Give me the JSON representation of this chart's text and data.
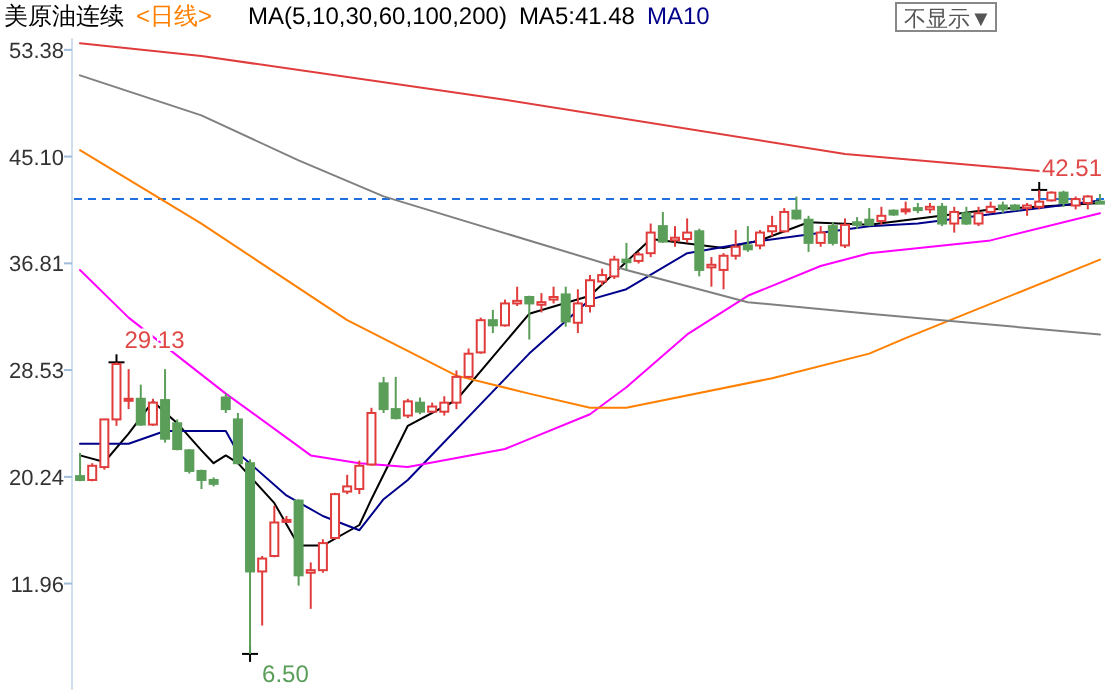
{
  "chart_data": {
    "type": "candlestick",
    "title": "美原油连续",
    "subtitle": "<日线>",
    "categories": [
      null,
      null,
      null,
      null,
      null,
      null,
      null,
      null,
      null,
      null,
      null,
      null,
      null,
      null,
      null,
      null,
      null,
      null,
      null,
      null,
      null,
      null,
      null,
      null,
      null,
      null,
      null,
      null,
      null,
      null,
      null,
      null,
      null,
      null,
      null,
      null,
      null,
      null,
      null,
      null,
      null,
      null,
      null,
      null,
      null,
      null,
      null,
      null,
      null,
      null,
      null,
      null,
      null,
      null,
      null,
      null,
      null,
      null,
      null,
      null,
      null,
      null,
      null,
      null,
      null,
      null,
      null,
      null,
      null,
      null,
      null,
      null,
      null,
      null,
      null,
      null,
      null,
      null,
      null,
      null,
      null,
      null,
      null,
      null,
      null
    ],
    "ohlc": [
      [
        20.3,
        22.1,
        19.9,
        20.0
      ],
      [
        20.0,
        21.3,
        19.9,
        21.1
      ],
      [
        21.0,
        24.7,
        20.8,
        24.7
      ],
      [
        24.7,
        29.13,
        24.2,
        29.0
      ],
      [
        26.2,
        28.6,
        25.5,
        26.3
      ],
      [
        26.3,
        27.4,
        24.2,
        24.3
      ],
      [
        24.3,
        26.3,
        24.2,
        26.0
      ],
      [
        26.2,
        28.6,
        22.9,
        23.2
      ],
      [
        24.4,
        24.7,
        22.3,
        22.4
      ],
      [
        22.3,
        22.4,
        20.5,
        20.7
      ],
      [
        20.7,
        20.8,
        19.3,
        20.0
      ],
      [
        20.0,
        20.2,
        19.5,
        19.7
      ],
      [
        26.4,
        26.7,
        25.2,
        25.5
      ],
      [
        24.7,
        25.2,
        21.2,
        21.3
      ],
      [
        21.3,
        21.6,
        6.5,
        12.9
      ],
      [
        12.9,
        14.1,
        8.7,
        13.9
      ],
      [
        14.1,
        18.0,
        14.0,
        16.7
      ],
      [
        16.8,
        17.2,
        16.7,
        16.9
      ],
      [
        18.4,
        18.5,
        11.8,
        12.6
      ],
      [
        12.8,
        13.6,
        10.0,
        13.0
      ],
      [
        13.0,
        15.4,
        12.8,
        15.1
      ],
      [
        15.5,
        19.0,
        15.4,
        18.9
      ],
      [
        19.1,
        20.4,
        18.9,
        19.5
      ],
      [
        19.3,
        21.5,
        18.9,
        21.1
      ],
      [
        21.2,
        25.6,
        21.1,
        25.2
      ],
      [
        27.5,
        28.0,
        25.2,
        25.5
      ],
      [
        25.5,
        28.0,
        24.7,
        24.8
      ],
      [
        25.0,
        26.3,
        24.8,
        26.1
      ],
      [
        26.0,
        26.4,
        25.1,
        25.3
      ],
      [
        25.3,
        26.0,
        25.2,
        25.7
      ],
      [
        25.3,
        26.5,
        25.0,
        26.0
      ],
      [
        26.0,
        28.5,
        25.5,
        28.0
      ],
      [
        28.0,
        30.2,
        27.9,
        29.8
      ],
      [
        29.9,
        32.6,
        29.8,
        32.4
      ],
      [
        32.4,
        33.2,
        31.4,
        32.0
      ],
      [
        32.0,
        34.0,
        31.9,
        33.7
      ],
      [
        33.7,
        35.0,
        33.5,
        33.9
      ],
      [
        34.2,
        34.3,
        30.9,
        33.7
      ],
      [
        33.6,
        34.5,
        33.0,
        33.8
      ],
      [
        34.0,
        35.0,
        33.7,
        34.2
      ],
      [
        34.4,
        35.0,
        31.9,
        32.3
      ],
      [
        32.2,
        34.8,
        31.4,
        33.7
      ],
      [
        33.5,
        35.9,
        33.0,
        35.5
      ],
      [
        35.4,
        36.4,
        35.1,
        35.9
      ],
      [
        35.8,
        37.4,
        35.6,
        37.1
      ],
      [
        37.1,
        38.4,
        36.3,
        36.9
      ],
      [
        37.0,
        37.7,
        36.8,
        37.5
      ],
      [
        37.6,
        39.9,
        37.3,
        39.2
      ],
      [
        39.7,
        40.8,
        38.4,
        38.5
      ],
      [
        38.6,
        39.7,
        38.1,
        38.8
      ],
      [
        38.7,
        40.3,
        38.4,
        39.2
      ],
      [
        39.3,
        39.5,
        35.8,
        36.3
      ],
      [
        36.5,
        37.3,
        35.0,
        36.7
      ],
      [
        36.3,
        37.6,
        34.8,
        37.4
      ],
      [
        37.4,
        39.4,
        37.1,
        38.1
      ],
      [
        38.2,
        39.7,
        37.7,
        37.9
      ],
      [
        38.2,
        39.4,
        37.9,
        39.2
      ],
      [
        39.3,
        40.5,
        38.9,
        39.7
      ],
      [
        39.3,
        41.1,
        39.2,
        40.8
      ],
      [
        40.9,
        42.0,
        40.2,
        40.3
      ],
      [
        40.2,
        40.5,
        37.7,
        38.4
      ],
      [
        38.4,
        39.7,
        38.1,
        39.2
      ],
      [
        39.7,
        40.0,
        38.2,
        38.4
      ],
      [
        38.2,
        40.3,
        38.0,
        39.8
      ],
      [
        40.0,
        40.4,
        39.5,
        39.8
      ],
      [
        40.2,
        41.1,
        39.7,
        39.8
      ],
      [
        40.1,
        41.2,
        39.8,
        40.5
      ],
      [
        40.9,
        41.0,
        40.5,
        40.6
      ],
      [
        40.9,
        41.6,
        40.6,
        41.0
      ],
      [
        41.1,
        41.5,
        40.7,
        41.0
      ],
      [
        41.0,
        41.5,
        40.7,
        41.2
      ],
      [
        41.2,
        41.5,
        39.7,
        39.9
      ],
      [
        39.9,
        41.2,
        39.2,
        40.8
      ],
      [
        40.7,
        41.2,
        39.8,
        39.9
      ],
      [
        39.9,
        41.2,
        39.7,
        40.7
      ],
      [
        40.8,
        41.6,
        40.7,
        41.2
      ],
      [
        41.3,
        41.6,
        40.7,
        41.0
      ],
      [
        41.3,
        41.4,
        40.9,
        41.0
      ],
      [
        41.1,
        41.5,
        40.5,
        41.3
      ],
      [
        41.2,
        42.51,
        41.0,
        41.6
      ],
      [
        41.7,
        42.4,
        41.6,
        42.3
      ],
      [
        42.3,
        42.45,
        41.2,
        41.5
      ],
      [
        41.3,
        42.0,
        41.0,
        41.8
      ],
      [
        41.5,
        42.1,
        41.0,
        42.0
      ],
      [
        41.6,
        42.2,
        41.5,
        41.5
      ]
    ],
    "series": [
      {
        "type": "line",
        "name": "MA5:41.48",
        "color": "#000000",
        "values": [
          21.9,
          null,
          21.4,
          null,
          23.6,
          null,
          26.1,
          null,
          24.4,
          null,
          22.3,
          21.3,
          21.9,
          21.3,
          null,
          null,
          18.2,
          null,
          14.9,
          null,
          14.9,
          null,
          null,
          16.5,
          18.5,
          null,
          null,
          24.2,
          null,
          null,
          null,
          26.2,
          null,
          null,
          null,
          null,
          null,
          32.9,
          null,
          null,
          null,
          null,
          34.3,
          null,
          null,
          null,
          null,
          38.7,
          null,
          null,
          null,
          null,
          null,
          38.0,
          null,
          null,
          38.6,
          null,
          null,
          null,
          40.0,
          null,
          null,
          null,
          null,
          39.8,
          null,
          null,
          null,
          null,
          null,
          null,
          null,
          null,
          null,
          41.0,
          null,
          null,
          null,
          null,
          null,
          null,
          null,
          null,
          41.5
        ]
      },
      {
        "type": "line",
        "name": "MA10",
        "color": "#00008b",
        "values": [
          22.8,
          null,
          null,
          null,
          22.8,
          null,
          null,
          23.8,
          null,
          null,
          null,
          null,
          23.8,
          22.1,
          null,
          null,
          null,
          18.8,
          null,
          null,
          17.2,
          null,
          null,
          16.1,
          null,
          18.5,
          null,
          20.0,
          null,
          null,
          null,
          null,
          null,
          null,
          null,
          null,
          null,
          29.8,
          null,
          null,
          null,
          null,
          34.0,
          null,
          null,
          34.8,
          null,
          null,
          null,
          null,
          37.6,
          null,
          null,
          null,
          null,
          38.4,
          null,
          null,
          null,
          null,
          null,
          null,
          null,
          null,
          null,
          39.7,
          null,
          null,
          null,
          39.9,
          null,
          null,
          null,
          null,
          null,
          null,
          null,
          null,
          null,
          null,
          null,
          null,
          null,
          null,
          41.7
        ]
      },
      {
        "type": "line",
        "color": "#ff00ff",
        "values": [
          36.3,
          null,
          null,
          null,
          32.6,
          null,
          null,
          null,
          null,
          null,
          null,
          null,
          26.7,
          null,
          null,
          null,
          null,
          null,
          null,
          21.9,
          null,
          null,
          null,
          21.3,
          null,
          null,
          null,
          21.0,
          null,
          null,
          null,
          null,
          null,
          null,
          null,
          22.4,
          null,
          null,
          null,
          null,
          null,
          null,
          25.1,
          null,
          null,
          27.2,
          null,
          null,
          null,
          null,
          31.3,
          null,
          null,
          null,
          null,
          34.3,
          null,
          null,
          null,
          null,
          null,
          36.6,
          null,
          null,
          null,
          37.6,
          null,
          null,
          null,
          null,
          null,
          null,
          null,
          null,
          null,
          38.6,
          null,
          null,
          null,
          null,
          null,
          null,
          null,
          null,
          40.7
        ]
      },
      {
        "type": "line",
        "color": "#ff8000",
        "values": [
          45.6,
          null,
          null,
          null,
          null,
          null,
          null,
          null,
          null,
          null,
          39.9,
          null,
          null,
          null,
          null,
          null,
          null,
          null,
          null,
          null,
          null,
          null,
          32.4,
          null,
          null,
          null,
          null,
          null,
          null,
          null,
          null,
          28.1,
          null,
          null,
          null,
          null,
          null,
          26.7,
          null,
          null,
          null,
          null,
          25.6,
          null,
          null,
          25.6,
          null,
          null,
          null,
          null,
          null,
          null,
          null,
          null,
          null,
          null,
          null,
          27.9,
          null,
          null,
          null,
          null,
          null,
          null,
          null,
          29.8,
          null,
          null,
          31.0,
          null,
          null,
          null,
          null,
          null,
          null,
          null,
          null,
          null,
          null,
          null,
          null,
          null,
          null,
          null,
          37.1
        ]
      },
      {
        "type": "line",
        "color": "#808080",
        "values": [
          51.4,
          null,
          null,
          null,
          null,
          null,
          null,
          null,
          null,
          null,
          48.3,
          null,
          null,
          null,
          null,
          null,
          null,
          null,
          44.8,
          null,
          null,
          null,
          null,
          null,
          null,
          42.0,
          null,
          null,
          null,
          null,
          null,
          null,
          null,
          null,
          null,
          null,
          null,
          null,
          null,
          null,
          null,
          null,
          null,
          null,
          null,
          36.3,
          null,
          null,
          null,
          null,
          null,
          null,
          null,
          null,
          null,
          33.8,
          null,
          null,
          null,
          null,
          null,
          null,
          null,
          null,
          null,
          32.9,
          null,
          null,
          null,
          null,
          null,
          null,
          null,
          null,
          null,
          null,
          null,
          null,
          null,
          null,
          null,
          null,
          null,
          null,
          31.3
        ]
      },
      {
        "type": "line",
        "color": "#e03c3c",
        "values": [
          53.9,
          null,
          null,
          null,
          null,
          null,
          null,
          null,
          null,
          null,
          52.9,
          null,
          null,
          null,
          null,
          null,
          null,
          null,
          null,
          null,
          null,
          null,
          null,
          null,
          null,
          null,
          null,
          null,
          null,
          null,
          null,
          null,
          null,
          null,
          null,
          49.5,
          null,
          null,
          null,
          null,
          null,
          null,
          null,
          null,
          null,
          null,
          null,
          null,
          null,
          null,
          null,
          null,
          null,
          null,
          null,
          null,
          null,
          null,
          null,
          null,
          null,
          null,
          null,
          45.3,
          null,
          null,
          null,
          null,
          null,
          null,
          null,
          null,
          null,
          null,
          null,
          null,
          null,
          null,
          null,
          null,
          43.9,
          null,
          null,
          null,
          43.8
        ]
      }
    ],
    "ylim": [
      3.7,
      54.3
    ],
    "yticks": [
      53.38,
      {
        "value": 45.1,
        "label": "45.10"
      },
      36.81,
      28.53,
      20.24,
      11.96
    ],
    "tick_labels": "y",
    "legend": "top left",
    "ref_lines": [
      {
        "axis": "y",
        "value": 41.8,
        "color": "#1e6fe0",
        "line_style": "dashed"
      }
    ],
    "annotations": [
      "29.13",
      "6.50",
      "42.51",
      "MA(5,10,30,60,100,200)",
      "不显示▼"
    ]
  }
}
